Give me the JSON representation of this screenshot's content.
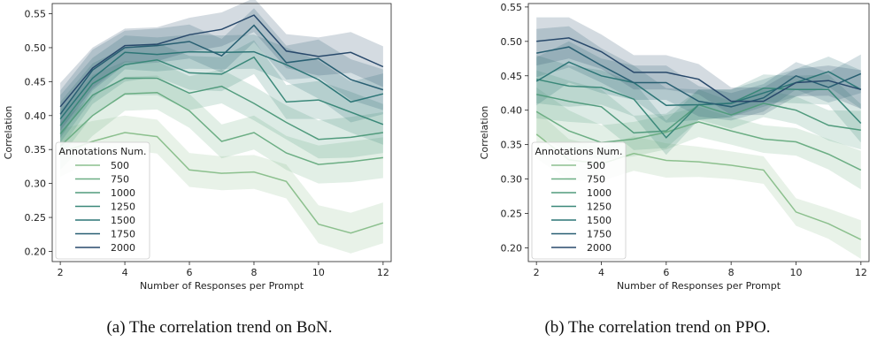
{
  "chart_data": [
    {
      "type": "line",
      "caption": "(a) The correlation trend on BoN.",
      "xlabel": "Number of Responses per Prompt",
      "ylabel": "Correlation",
      "xlim": [
        1.75,
        12.25
      ],
      "ylim": [
        0.185,
        0.565
      ],
      "xticks": [
        2,
        4,
        6,
        8,
        10,
        12
      ],
      "yticks": [
        0.2,
        0.25,
        0.3,
        0.35,
        0.4,
        0.45,
        0.5,
        0.55
      ],
      "grid": false,
      "legend": {
        "title": "Annotations Num.",
        "placement": "lower-left"
      },
      "x": [
        2,
        3,
        4,
        5,
        6,
        7,
        8,
        9,
        10,
        11,
        12
      ],
      "band_halfwidth": [
        0.035,
        0.03,
        0.025,
        0.025,
        0.025,
        0.025,
        0.025,
        0.025,
        0.028,
        0.03,
        0.03
      ],
      "series": [
        {
          "name": "500",
          "color": "#8cc08e",
          "values": [
            0.345,
            0.362,
            0.375,
            0.369,
            0.32,
            0.315,
            0.317,
            0.303,
            0.24,
            0.227,
            0.242
          ]
        },
        {
          "name": "750",
          "color": "#6cae84",
          "values": [
            0.355,
            0.4,
            0.432,
            0.434,
            0.407,
            0.362,
            0.375,
            0.345,
            0.328,
            0.332,
            0.338
          ]
        },
        {
          "name": "1000",
          "color": "#519b7d",
          "values": [
            0.373,
            0.43,
            0.455,
            0.455,
            0.433,
            0.443,
            0.418,
            0.39,
            0.365,
            0.368,
            0.375
          ]
        },
        {
          "name": "1250",
          "color": "#3a8879",
          "values": [
            0.385,
            0.447,
            0.475,
            0.482,
            0.463,
            0.461,
            0.486,
            0.42,
            0.423,
            0.405,
            0.387
          ]
        },
        {
          "name": "1500",
          "color": "#2c7576",
          "values": [
            0.395,
            0.455,
            0.493,
            0.49,
            0.494,
            0.493,
            0.494,
            0.475,
            0.453,
            0.42,
            0.432
          ]
        },
        {
          "name": "1750",
          "color": "#285f72",
          "values": [
            0.402,
            0.467,
            0.5,
            0.503,
            0.509,
            0.488,
            0.533,
            0.478,
            0.484,
            0.453,
            0.438
          ]
        },
        {
          "name": "2000",
          "color": "#28496b",
          "values": [
            0.413,
            0.47,
            0.503,
            0.505,
            0.519,
            0.527,
            0.548,
            0.495,
            0.487,
            0.493,
            0.472
          ]
        }
      ]
    },
    {
      "type": "line",
      "caption": "(b) The correlation trend on PPO.",
      "xlabel": "Number of Responses per Prompt",
      "ylabel": "Correlation",
      "xlim": [
        1.75,
        12.25
      ],
      "ylim": [
        0.18,
        0.555
      ],
      "xticks": [
        2,
        4,
        6,
        8,
        10,
        12
      ],
      "yticks": [
        0.2,
        0.25,
        0.3,
        0.35,
        0.4,
        0.45,
        0.5,
        0.55
      ],
      "grid": false,
      "legend": {
        "title": "Annotations Num.",
        "placement": "lower-left"
      },
      "x": [
        2,
        3,
        4,
        5,
        6,
        7,
        8,
        9,
        10,
        11,
        12
      ],
      "band_halfwidth": [
        0.035,
        0.03,
        0.025,
        0.025,
        0.025,
        0.022,
        0.02,
        0.02,
        0.02,
        0.022,
        0.028
      ],
      "series": [
        {
          "name": "500",
          "color": "#8cc08e",
          "values": [
            0.365,
            0.328,
            0.322,
            0.337,
            0.327,
            0.325,
            0.32,
            0.313,
            0.252,
            0.235,
            0.212
          ]
        },
        {
          "name": "750",
          "color": "#6cae84",
          "values": [
            0.398,
            0.37,
            0.353,
            0.358,
            0.368,
            0.383,
            0.37,
            0.358,
            0.354,
            0.336,
            0.313
          ]
        },
        {
          "name": "1000",
          "color": "#519b7d",
          "values": [
            0.423,
            0.413,
            0.405,
            0.367,
            0.37,
            0.408,
            0.393,
            0.41,
            0.4,
            0.378,
            0.371
          ]
        },
        {
          "name": "1250",
          "color": "#3a8879",
          "values": [
            0.445,
            0.435,
            0.433,
            0.416,
            0.36,
            0.408,
            0.41,
            0.432,
            0.43,
            0.43,
            0.381
          ]
        },
        {
          "name": "1500",
          "color": "#2c7576",
          "values": [
            0.442,
            0.47,
            0.45,
            0.44,
            0.407,
            0.408,
            0.41,
            0.425,
            0.44,
            0.456,
            0.43
          ]
        },
        {
          "name": "1750",
          "color": "#285f72",
          "values": [
            0.483,
            0.492,
            0.465,
            0.44,
            0.44,
            0.413,
            0.405,
            0.418,
            0.45,
            0.433,
            0.453
          ]
        },
        {
          "name": "2000",
          "color": "#28496b",
          "values": [
            0.5,
            0.505,
            0.485,
            0.455,
            0.455,
            0.445,
            0.413,
            0.413,
            0.44,
            0.443,
            0.43
          ]
        }
      ]
    }
  ]
}
